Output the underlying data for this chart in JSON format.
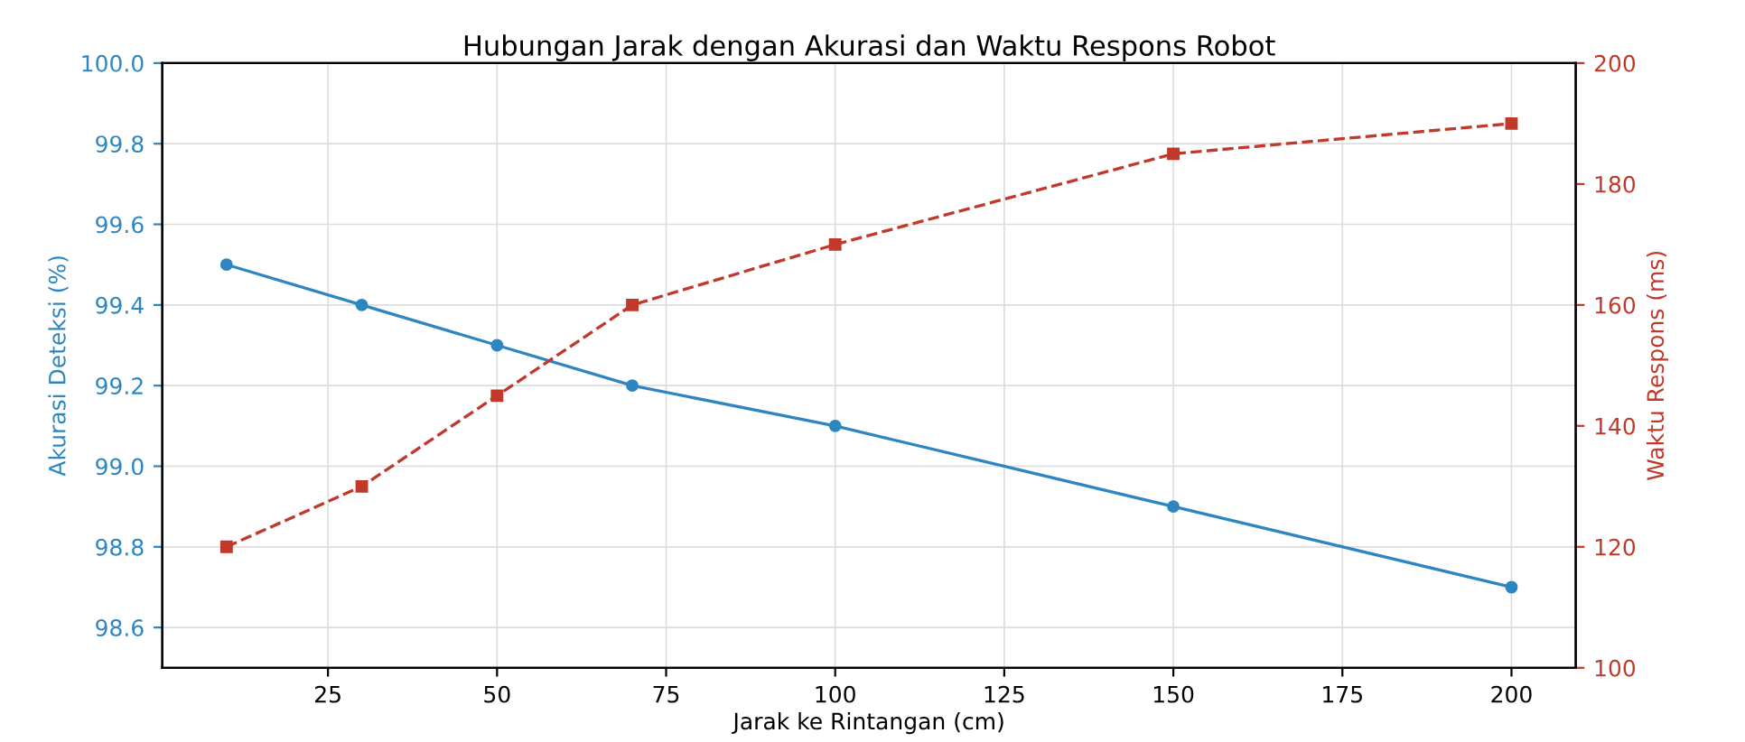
{
  "chart_data": {
    "type": "line",
    "title": "Hubungan Jarak dengan Akurasi dan Waktu Respons Robot",
    "xlabel": "Jarak ke Rintangan (cm)",
    "ylabel": "Akurasi Deteksi (%)",
    "y2label": "Waktu Respons (ms)",
    "x": [
      10,
      30,
      50,
      70,
      100,
      150,
      200
    ],
    "series": [
      {
        "color": "#2e86c1",
        "values": [
          99.5,
          99.4,
          99.3,
          99.2,
          99.1,
          98.9,
          98.7
        ],
        "marker": "circle",
        "line_style": "solid"
      },
      {
        "color": "#c0392b",
        "values": [
          120,
          130,
          145,
          160,
          170,
          185,
          190
        ],
        "marker": "square",
        "line_style": "dashed",
        "axis": "y2"
      }
    ],
    "xlim": [
      0.5,
      209.5
    ],
    "xticks": [
      25,
      50,
      75,
      100,
      125,
      150,
      175,
      200
    ],
    "ylim": [
      98.5,
      100.0
    ],
    "yticks": [
      {
        "value": 98.6,
        "label": "98.6"
      },
      {
        "value": 98.8,
        "label": "98.8"
      },
      {
        "value": 99.0,
        "label": "99.0"
      },
      {
        "value": 99.2,
        "label": "99.2"
      },
      {
        "value": 99.4,
        "label": "99.4"
      },
      {
        "value": 99.6,
        "label": "99.6"
      },
      {
        "value": 99.8,
        "label": "99.8"
      },
      {
        "value": 100.0,
        "label": "100.0"
      }
    ],
    "y2lim": [
      100,
      200
    ],
    "y2ticks": [
      100,
      120,
      140,
      160,
      180,
      200
    ],
    "grid": true
  }
}
